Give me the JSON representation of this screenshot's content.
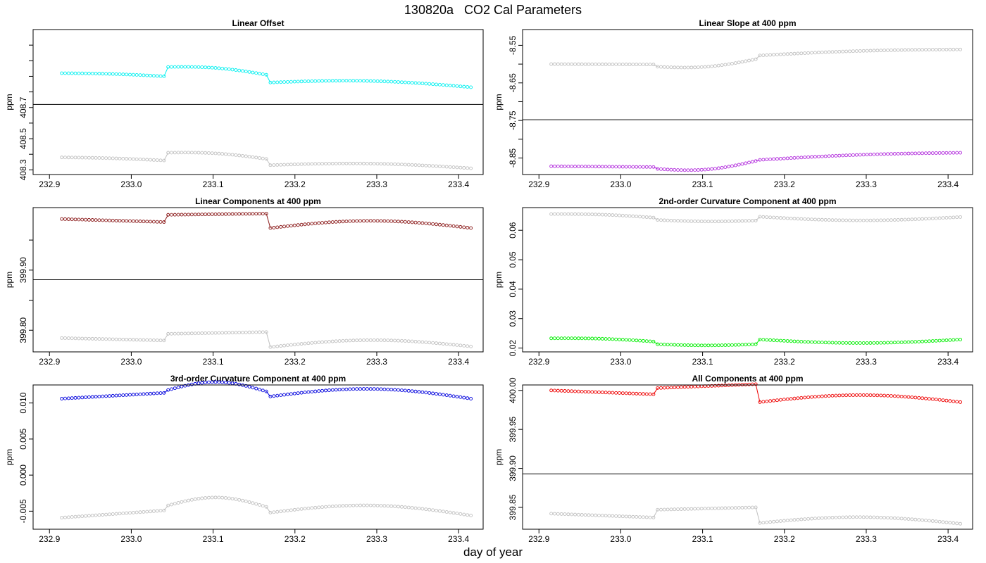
{
  "figure": {
    "title": "130820a   CO2 Cal Parameters",
    "xlabel": "day of year"
  },
  "chart_data": [
    {
      "type": "scatter",
      "title": "Linear Offset",
      "ylabel": "ppm",
      "xlim": [
        232.88,
        233.43
      ],
      "ylim": [
        408.27,
        409.2
      ],
      "yticks": [
        408.3,
        408.5,
        408.7
      ],
      "yminor": [
        408.4,
        408.6,
        408.8,
        408.9,
        409.0,
        409.1
      ],
      "ytick_labels": [
        "408.3",
        "408.5",
        "408.7"
      ],
      "xticks": [
        232.9,
        233.0,
        233.1,
        233.2,
        233.3,
        233.4
      ],
      "xtick_labels": [
        "232.9",
        "233.0",
        "233.1",
        "233.2",
        "233.3",
        "233.4"
      ],
      "hline": 408.72,
      "series": [
        {
          "role": "main",
          "color": "#00f0f0",
          "shape": "segments",
          "segments": [
            [
              232.915,
              233.04,
              408.92,
              408.9,
              0.005
            ],
            [
              233.045,
              233.165,
              408.96,
              408.91,
              0.018
            ],
            [
              233.17,
              233.415,
              408.86,
              408.83,
              0.025
            ]
          ]
        },
        {
          "role": "reference",
          "color": "#c0c0c0",
          "shape": "segments",
          "segments": [
            [
              232.915,
              233.04,
              408.38,
              408.36,
              0.004
            ],
            [
              233.045,
              233.165,
              408.41,
              408.37,
              0.015
            ],
            [
              233.17,
              233.415,
              408.33,
              408.31,
              0.02
            ]
          ]
        }
      ]
    },
    {
      "type": "scatter",
      "title": "Linear Slope at 400 ppm",
      "ylabel": "ppm",
      "xlim": [
        232.88,
        233.43
      ],
      "ylim": [
        -8.894,
        -8.508
      ],
      "yticks": [
        -8.85,
        -8.75,
        -8.65,
        -8.55
      ],
      "yminor": [
        -8.8,
        -8.7,
        -8.6
      ],
      "ytick_labels": [
        "-8.85",
        "-8.75",
        "-8.65",
        "-8.55"
      ],
      "xticks": [
        232.9,
        233.0,
        233.1,
        233.2,
        233.3,
        233.4
      ],
      "xtick_labels": [
        "232.9",
        "233.0",
        "233.1",
        "233.2",
        "233.3",
        "233.4"
      ],
      "hline": -8.748,
      "series": [
        {
          "role": "main",
          "color": "#b22cdd",
          "shape": "segments",
          "segments": [
            [
              232.915,
              233.04,
              -8.872,
              -8.874,
              0.0
            ],
            [
              233.045,
              233.165,
              -8.879,
              -8.858,
              -0.012
            ],
            [
              233.17,
              233.415,
              -8.855,
              -8.836,
              0.004
            ]
          ]
        },
        {
          "role": "reference",
          "color": "#c0c0c0",
          "shape": "segments",
          "segments": [
            [
              232.915,
              233.04,
              -8.6,
              -8.601,
              0.0
            ],
            [
              233.045,
              233.165,
              -8.607,
              -8.587,
              -0.01
            ],
            [
              233.17,
              233.415,
              -8.577,
              -8.561,
              0.004
            ]
          ]
        }
      ]
    },
    {
      "type": "scatter",
      "title": "Linear Components at 400 ppm",
      "ylabel": "ppm",
      "xlim": [
        232.88,
        233.43
      ],
      "ylim": [
        399.764,
        400.004
      ],
      "yticks": [
        399.8,
        399.9
      ],
      "yminor": [
        399.85,
        399.95
      ],
      "ytick_labels": [
        "399.80",
        "399.90"
      ],
      "xticks": [
        232.9,
        233.0,
        233.1,
        233.2,
        233.3,
        233.4
      ],
      "xtick_labels": [
        "232.9",
        "233.0",
        "233.1",
        "233.2",
        "233.3",
        "233.4"
      ],
      "hline": 399.884,
      "series": [
        {
          "role": "main",
          "color": "#8b1a1a",
          "shape": "segments",
          "segments": [
            [
              232.915,
              233.04,
              399.985,
              399.98,
              0.0
            ],
            [
              233.045,
              233.165,
              399.992,
              399.994,
              0.0
            ],
            [
              233.17,
              233.415,
              399.97,
              399.97,
              0.012
            ]
          ]
        },
        {
          "role": "reference",
          "color": "#c0c0c0",
          "shape": "segments",
          "segments": [
            [
              232.915,
              233.04,
              399.787,
              399.783,
              0.0
            ],
            [
              233.045,
              233.165,
              399.794,
              399.797,
              0.0
            ],
            [
              233.17,
              233.415,
              399.772,
              399.773,
              0.011
            ]
          ]
        }
      ]
    },
    {
      "type": "scatter",
      "title": "2nd-order Curvature Component at 400 ppm",
      "ylabel": "ppm",
      "xlim": [
        232.88,
        233.43
      ],
      "ylim": [
        0.0187,
        0.0677
      ],
      "yticks": [
        0.02,
        0.03,
        0.04,
        0.05,
        0.06
      ],
      "yminor": [],
      "ytick_labels": [
        "0.02",
        "0.03",
        "0.04",
        "0.05",
        "0.06"
      ],
      "xticks": [
        232.9,
        233.0,
        233.1,
        233.2,
        233.3,
        233.4
      ],
      "xtick_labels": [
        "232.9",
        "233.0",
        "233.1",
        "233.2",
        "233.3",
        "233.4"
      ],
      "hline": null,
      "series": [
        {
          "role": "main",
          "color": "#00ee00",
          "shape": "segments",
          "segments": [
            [
              232.915,
              233.04,
              0.0233,
              0.0222,
              0.0004
            ],
            [
              233.045,
              233.165,
              0.0213,
              0.0213,
              -0.0004
            ],
            [
              233.17,
              233.415,
              0.0229,
              0.0229,
              -0.0012
            ]
          ]
        },
        {
          "role": "reference",
          "color": "#c0c0c0",
          "shape": "segments",
          "segments": [
            [
              232.915,
              233.04,
              0.0655,
              0.0643,
              0.0004
            ],
            [
              233.045,
              233.165,
              0.0635,
              0.0633,
              -0.0004
            ],
            [
              233.17,
              233.415,
              0.0646,
              0.0645,
              -0.0012
            ]
          ]
        }
      ]
    },
    {
      "type": "scatter",
      "title": "3rd-order Curvature Component at 400 ppm",
      "ylabel": "ppm",
      "xlim": [
        232.88,
        233.43
      ],
      "ylim": [
        -0.0075,
        0.0125
      ],
      "yticks": [
        -0.005,
        0.0,
        0.005,
        0.01
      ],
      "yminor": [],
      "ytick_labels": [
        "-0.005",
        "0.000",
        "0.005",
        "0.010"
      ],
      "xticks": [
        232.9,
        233.0,
        233.1,
        233.2,
        233.3,
        233.4
      ],
      "xtick_labels": [
        "232.9",
        "233.0",
        "233.1",
        "233.2",
        "233.3",
        "233.4"
      ],
      "hline": null,
      "series": [
        {
          "role": "main",
          "color": "#0000dd",
          "shape": "segments",
          "segments": [
            [
              232.915,
              233.04,
              0.0106,
              0.0114,
              0.0
            ],
            [
              233.045,
              233.165,
              0.0118,
              0.0116,
              0.0012
            ],
            [
              233.17,
              233.415,
              0.0109,
              0.0106,
              0.0012
            ]
          ]
        },
        {
          "role": "reference",
          "color": "#c0c0c0",
          "shape": "segments",
          "segments": [
            [
              232.915,
              233.04,
              -0.0059,
              -0.0049,
              0.0
            ],
            [
              233.045,
              233.165,
              -0.0042,
              -0.0044,
              0.0012
            ],
            [
              233.17,
              233.415,
              -0.0052,
              -0.0056,
              0.0012
            ]
          ]
        }
      ]
    },
    {
      "type": "scatter",
      "title": "All Components at 400 ppm",
      "ylabel": "ppm",
      "xlim": [
        232.88,
        233.43
      ],
      "ylim": [
        399.822,
        400.007
      ],
      "yticks": [
        399.85,
        399.9,
        399.95,
        400.0
      ],
      "yminor": [],
      "ytick_labels": [
        "399.85",
        "399.90",
        "399.95",
        "400.00"
      ],
      "xticks": [
        232.9,
        233.0,
        233.1,
        233.2,
        233.3,
        233.4
      ],
      "xtick_labels": [
        "232.9",
        "233.0",
        "233.1",
        "233.2",
        "233.3",
        "233.4"
      ],
      "hline": 399.893,
      "series": [
        {
          "role": "main",
          "color": "#ee0000",
          "shape": "segments",
          "segments": [
            [
              232.915,
              233.04,
              400.0,
              399.995,
              0.0
            ],
            [
              233.045,
              233.165,
              400.003,
              400.008,
              0.0
            ],
            [
              233.17,
              233.415,
              399.985,
              399.985,
              0.009
            ]
          ]
        },
        {
          "role": "reference",
          "color": "#c0c0c0",
          "shape": "segments",
          "segments": [
            [
              232.915,
              233.04,
              399.842,
              399.837,
              0.0
            ],
            [
              233.045,
              233.165,
              399.847,
              399.85,
              0.0
            ],
            [
              233.17,
              233.415,
              399.83,
              399.829,
              0.008
            ]
          ]
        }
      ]
    }
  ]
}
